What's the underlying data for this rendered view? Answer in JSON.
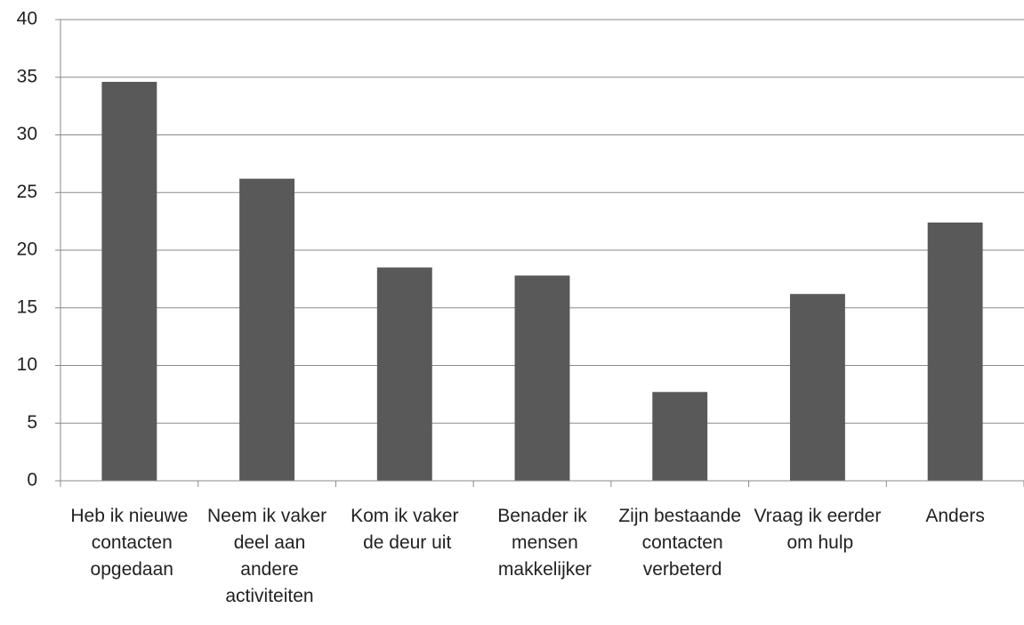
{
  "chart_data": {
    "type": "bar",
    "categories": [
      "Heb ik nieuwe contacten opgedaan",
      "Neem ik vaker deel aan andere activiteiten",
      "Kom ik vaker de deur uit",
      "Benader ik mensen makkelijker",
      "Zijn bestaande contacten verbeterd",
      "Vraag ik eerder om hulp",
      "Anders"
    ],
    "values": [
      34.6,
      26.2,
      18.5,
      17.8,
      7.7,
      16.2,
      22.4
    ],
    "color": "#595959",
    "ylim": [
      0,
      40
    ],
    "yticks": [
      0,
      5,
      10,
      15,
      20,
      25,
      30,
      35,
      40
    ],
    "grid": true
  }
}
